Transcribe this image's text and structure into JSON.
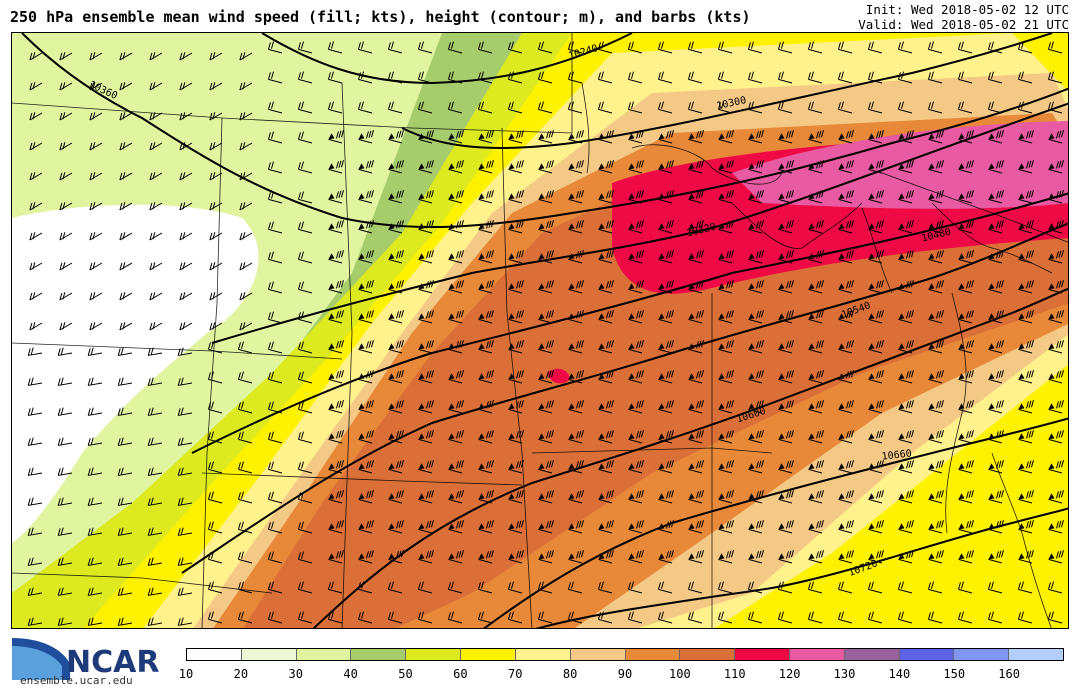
{
  "title": "250 hPa ensemble mean wind speed (fill; kts), height (contour; m), and barbs (kts)",
  "init_time": "Init: Wed 2018-05-02 12 UTC",
  "valid_time": "Valid: Wed 2018-05-02 21 UTC",
  "logo": {
    "name": "NCAR",
    "site": "ensemble.ucar.edu"
  },
  "colorbar": {
    "labels": [
      "10",
      "20",
      "30",
      "40",
      "50",
      "60",
      "70",
      "80",
      "90",
      "100",
      "110",
      "120",
      "130",
      "140",
      "150",
      "160"
    ],
    "colors": [
      "#ffffff",
      "#eef7d6",
      "#e1f5a0",
      "#a7cc6b",
      "#dcea1f",
      "#fef200",
      "#fff28d",
      "#f4c985",
      "#e8893a",
      "#db6f38",
      "#ef0a45",
      "#e85aa2",
      "#99619e",
      "#5d62e6",
      "#7f96f2",
      "#b3cefc"
    ]
  },
  "contours": [
    {
      "label": "10240",
      "value": 10240
    },
    {
      "label": "10300",
      "value": 10300
    },
    {
      "label": "10360",
      "value": 10360
    },
    {
      "label": "10420",
      "value": 10420
    },
    {
      "label": "10480",
      "value": 10480
    },
    {
      "label": "10540",
      "value": 10540
    },
    {
      "label": "10600",
      "value": 10600
    },
    {
      "label": "10660",
      "value": 10660
    },
    {
      "label": "10720",
      "value": 10720
    }
  ],
  "colors": {
    "contour": "#000000",
    "border": "#000000",
    "barb": "#000000"
  }
}
